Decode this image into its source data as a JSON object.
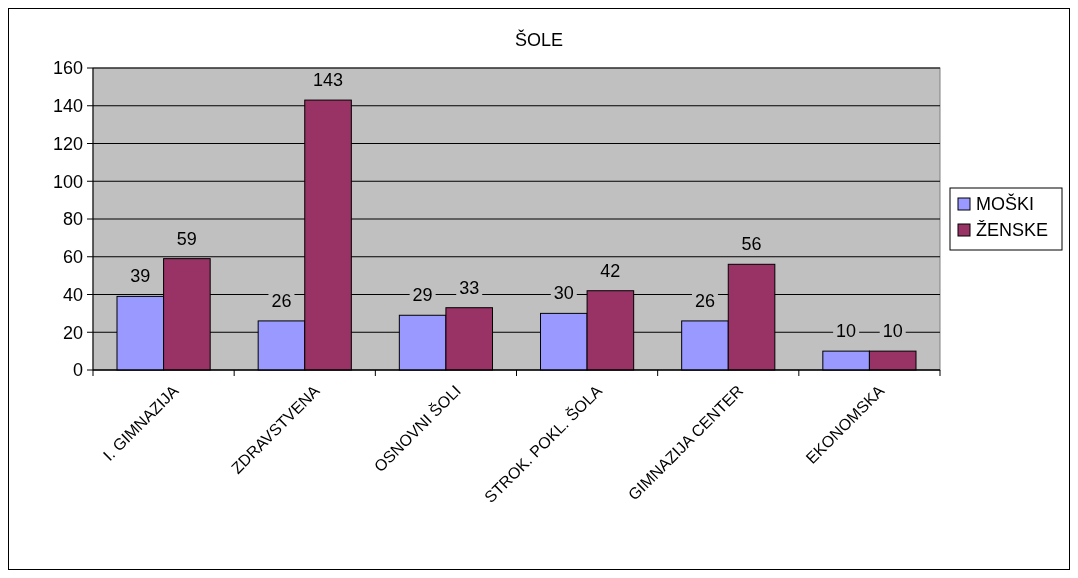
{
  "chart_data": {
    "type": "bar",
    "title": "ŠOLE",
    "categories": [
      "I. GIMNAZIJA",
      "ZDRAVSTVENA",
      "OSNOVNI ŠOLI",
      "STROK. POKL. ŠOLA",
      "GIMNAZIJA CENTER",
      "EKONOMSKA"
    ],
    "series": [
      {
        "name": "MOŠKI",
        "color": "#9999ff",
        "values": [
          39,
          26,
          29,
          30,
          26,
          10
        ]
      },
      {
        "name": "ŽENSKE",
        "color": "#993366",
        "values": [
          59,
          143,
          33,
          42,
          56,
          10
        ]
      }
    ],
    "ylim": [
      0,
      160
    ],
    "yticks": [
      0,
      20,
      40,
      60,
      80,
      100,
      120,
      140,
      160
    ],
    "grid": "y",
    "legend": "right",
    "data_labels": true
  }
}
